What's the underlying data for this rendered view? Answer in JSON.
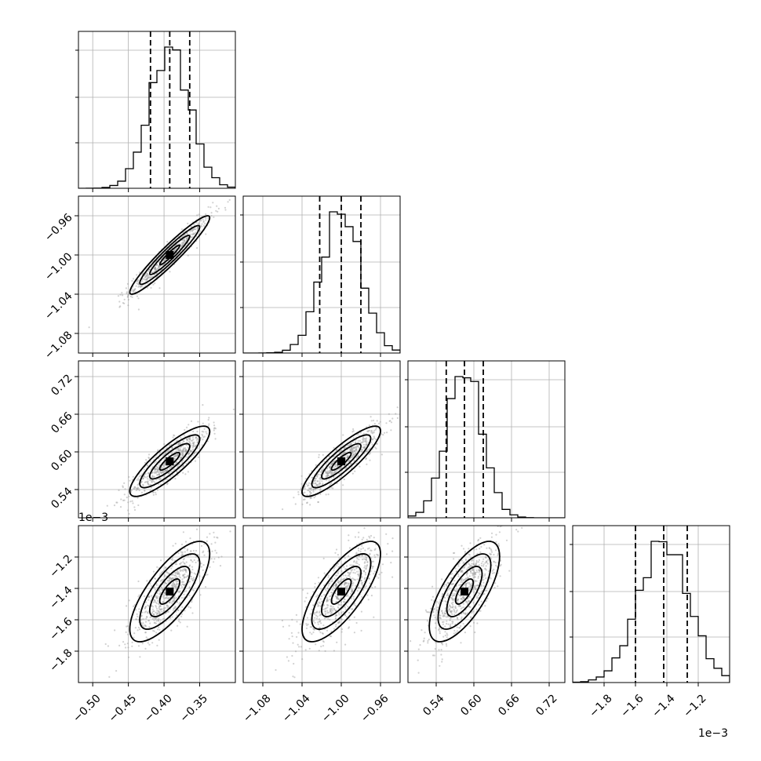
{
  "chart_data": {
    "type": "corner",
    "parameters": [
      {
        "index": 0,
        "range": [
          -0.52,
          -0.3
        ],
        "ticks": [
          -0.5,
          -0.45,
          -0.4,
          -0.35
        ],
        "tick_labels": [
          "−0.50",
          "−0.45",
          "−0.40",
          "−0.35"
        ],
        "mean": -0.392,
        "sd": 0.028,
        "quantiles": [
          -0.419,
          -0.392,
          -0.364
        ]
      },
      {
        "index": 1,
        "range": [
          -1.1,
          -0.94
        ],
        "ticks": [
          -1.08,
          -1.04,
          -1.0,
          -0.96
        ],
        "tick_labels": [
          "−1.08",
          "−1.04",
          "−1.00",
          "−0.96"
        ],
        "mean": -1.0,
        "sd": 0.02,
        "quantiles": [
          -1.022,
          -1.0,
          -0.98
        ]
      },
      {
        "index": 2,
        "range": [
          0.495,
          0.745
        ],
        "ticks": [
          0.54,
          0.6,
          0.66,
          0.72
        ],
        "tick_labels": [
          "0.54",
          "0.60",
          "0.66",
          "0.72"
        ],
        "mean": 0.585,
        "sd": 0.028,
        "quantiles": [
          0.556,
          0.585,
          0.615
        ]
      },
      {
        "index": 3,
        "range": [
          -2.0,
          -1.0
        ],
        "ticks": [
          -1.8,
          -1.6,
          -1.4,
          -1.2
        ],
        "tick_labels": [
          "−1.8",
          "−1.6",
          "−1.4",
          "−1.2"
        ],
        "mean": -1.42,
        "sd": 0.16,
        "quantiles": [
          -1.6,
          -1.42,
          -1.27
        ],
        "offset_label": "1e−3"
      }
    ],
    "correlations": {
      "0-1": 0.95,
      "0-2": 0.85,
      "1-2": 0.87,
      "0-3": 0.75,
      "1-3": 0.75,
      "2-3": 0.7
    },
    "contour_levels": [
      0.5,
      1.0,
      1.5,
      2.0
    ],
    "grid": true
  }
}
